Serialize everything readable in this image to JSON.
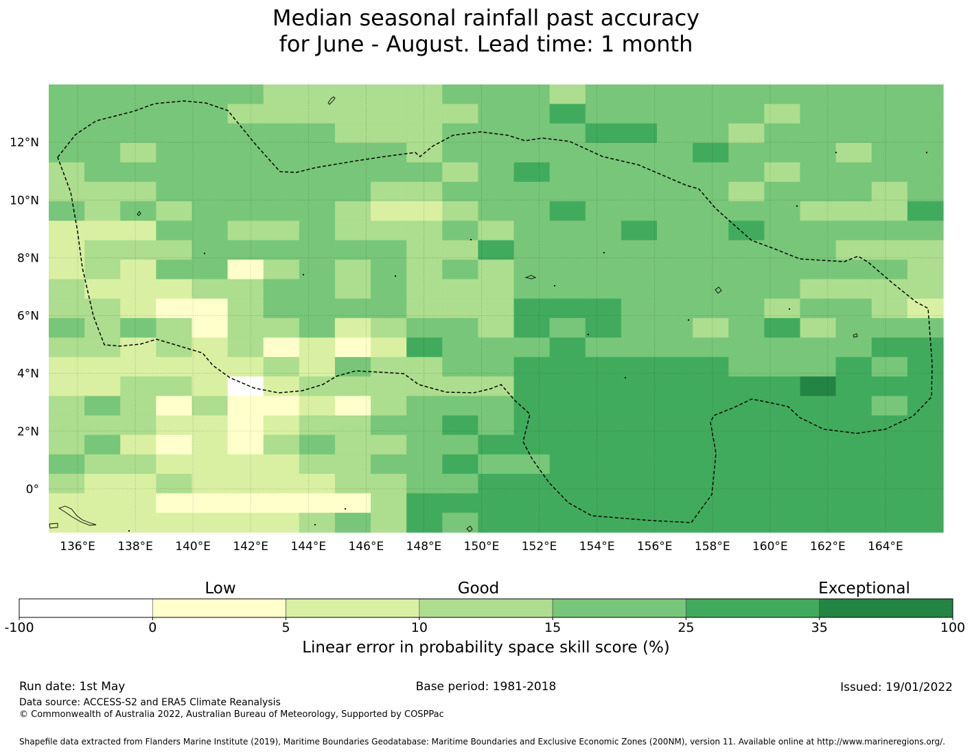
{
  "title": {
    "line1": "Median seasonal rainfall past accuracy",
    "line2": "for June - August. Lead time: 1 month"
  },
  "map": {
    "lon_range": [
      135,
      166
    ],
    "lat_range": [
      -1.5,
      14
    ],
    "lon_ticks": [
      "136°E",
      "138°E",
      "140°E",
      "142°E",
      "144°E",
      "146°E",
      "148°E",
      "150°E",
      "152°E",
      "154°E",
      "156°E",
      "158°E",
      "160°E",
      "162°E",
      "164°E"
    ],
    "lat_ticks": [
      "12°N",
      "10°N",
      "8°N",
      "6°N",
      "4°N",
      "2°N",
      "0°"
    ],
    "grid_rows": [
      "4444443333344434444444444",
      "4444433333334454444434444",
      "4444444433344445544344444",
      "4434444444344444445444344",
      "3444444444434544444434444",
      "3334444443344444444344434",
      "4343444432234454444443335",
      "2224433433343444544544444",
      "2333444444335444444444333",
      "2324413434343444444444443",
      "3222334434333444444443333",
      "3321134444333555444434432",
      "4343133423443545443453444",
      "3323231212544454444444455",
      "2222223243344555555444545",
      "2233202333333555555556555",
      "3431311213444555555555545",
      "3332212334454555555555555",
      "3421213433445555555555555",
      "4332222334454455555555555",
      "3223222233445555555555555",
      "2221111113555555555555555",
      "2222222343545555555555555"
    ]
  },
  "colorbar": {
    "ticks": [
      "-100",
      "0",
      "5",
      "10",
      "15",
      "25",
      "35",
      "100"
    ],
    "colors": [
      "#ffffff",
      "#ffffcc",
      "#d9f0a3",
      "#addd8e",
      "#78c679",
      "#41ab5d",
      "#238443"
    ],
    "categories": [
      "Low",
      "Good",
      "Exceptional"
    ],
    "label": "Linear error in probability space skill score (%)"
  },
  "footer": {
    "run_date": "Run date: 1st May",
    "base_period": "Base period: 1981-2018",
    "issued": "Issued: 19/01/2022",
    "data_source": "Data source: ACCESS-S2 and ERA5 Climate Reanalysis",
    "copyright": "© Commonwealth of Australia 2022, Australian Bureau of Meteorology, Supported by COSPPac",
    "shapefile": "Shapefile data extracted from Flanders Marine Institute (2019), Maritime Boundaries Geodatabase: Maritime Boundaries and Exclusive Economic Zones (200NM), version 11. Available online at http://www.marineregions.org/."
  }
}
